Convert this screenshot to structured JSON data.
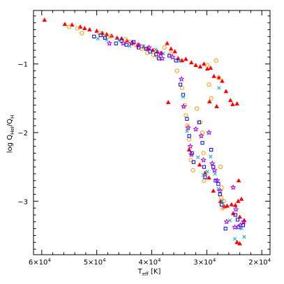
{
  "chart_data": {
    "type": "scatter",
    "title": "",
    "xlabel": "T_eff [K]",
    "ylabel": "log Q_HeI/Q_H",
    "xlabel_parts": {
      "main": "T",
      "sub": "eff",
      "tail": " [K]"
    },
    "ylabel_parts": {
      "head": "log Q",
      "sub1": "HeI",
      "mid": "/Q",
      "sub2": "H"
    },
    "xlim": [
      61500,
      18500
    ],
    "ylim": [
      -3.78,
      -0.22
    ],
    "x_ticks": [
      {
        "value": 60000,
        "label": "6×10",
        "exp": "4"
      },
      {
        "value": 50000,
        "label": "5×10",
        "exp": "4"
      },
      {
        "value": 40000,
        "label": "4×10",
        "exp": "4"
      },
      {
        "value": 30000,
        "label": "3×10",
        "exp": "4"
      },
      {
        "value": 20000,
        "label": "2×10",
        "exp": "4"
      }
    ],
    "y_ticks": [
      {
        "value": -1,
        "label": "−1"
      },
      {
        "value": -2,
        "label": "−2"
      },
      {
        "value": -3,
        "label": "−3"
      }
    ],
    "grid": false,
    "series": [
      {
        "marker": "triangle",
        "color": "#ff0000",
        "points": [
          [
            59500,
            -0.36
          ],
          [
            55800,
            -0.42
          ],
          [
            54500,
            -0.43
          ],
          [
            53000,
            -0.46
          ],
          [
            52200,
            -0.48
          ],
          [
            51300,
            -0.5
          ],
          [
            50000,
            -0.52
          ],
          [
            49000,
            -0.55
          ],
          [
            48200,
            -0.57
          ],
          [
            47300,
            -0.59
          ],
          [
            46300,
            -0.62
          ],
          [
            45500,
            -0.63
          ],
          [
            44500,
            -0.66
          ],
          [
            43500,
            -0.69
          ],
          [
            42500,
            -0.72
          ],
          [
            41500,
            -0.75
          ],
          [
            40700,
            -0.77
          ],
          [
            39800,
            -0.8
          ],
          [
            39000,
            -0.82
          ],
          [
            38200,
            -0.84
          ],
          [
            37200,
            -0.7
          ],
          [
            36500,
            -0.78
          ],
          [
            35800,
            -0.82
          ],
          [
            35200,
            -0.92
          ],
          [
            34500,
            -0.95
          ],
          [
            33800,
            -0.93
          ],
          [
            32800,
            -0.98
          ],
          [
            32000,
            -1.02
          ],
          [
            31200,
            -1.04
          ],
          [
            30500,
            -1.0
          ],
          [
            29900,
            -1.07
          ],
          [
            29300,
            -1.06
          ],
          [
            28700,
            -1.18
          ],
          [
            27800,
            -1.2
          ],
          [
            27200,
            -1.25
          ],
          [
            26500,
            -1.4
          ],
          [
            25700,
            -1.53
          ],
          [
            25300,
            -1.59
          ],
          [
            24500,
            -1.58
          ],
          [
            29500,
            -1.55
          ],
          [
            28200,
            -1.62
          ],
          [
            37000,
            -1.56
          ],
          [
            33200,
            -2.25
          ],
          [
            31300,
            -2.47
          ],
          [
            30300,
            -2.59
          ],
          [
            29600,
            -2.66
          ],
          [
            28800,
            -2.85
          ],
          [
            27500,
            -3.0
          ],
          [
            26300,
            -3.07
          ],
          [
            25500,
            -3.05
          ],
          [
            24800,
            -3.06
          ],
          [
            24300,
            -3.0
          ],
          [
            23700,
            -2.97
          ],
          [
            25200,
            -3.18
          ],
          [
            24000,
            -3.23
          ],
          [
            23200,
            -3.28
          ],
          [
            26800,
            -3.08
          ],
          [
            24500,
            -3.6
          ],
          [
            24000,
            -3.62
          ],
          [
            24200,
            -2.7
          ]
        ]
      },
      {
        "marker": "circle-open",
        "color": "#ff9900",
        "points": [
          [
            55000,
            -0.46
          ],
          [
            53500,
            -0.48
          ],
          [
            52700,
            -0.55
          ],
          [
            49500,
            -0.55
          ],
          [
            48600,
            -0.6
          ],
          [
            47600,
            -0.6
          ],
          [
            44800,
            -0.64
          ],
          [
            43900,
            -0.68
          ],
          [
            42800,
            -0.73
          ],
          [
            41800,
            -0.78
          ],
          [
            40800,
            -0.84
          ],
          [
            39700,
            -0.87
          ],
          [
            38900,
            -0.9
          ],
          [
            37700,
            -0.76
          ],
          [
            36600,
            -0.85
          ],
          [
            35400,
            -1.1
          ],
          [
            34500,
            -1.35
          ],
          [
            34000,
            -1.6
          ],
          [
            33500,
            -1.9
          ],
          [
            33200,
            -2.1
          ],
          [
            32900,
            -2.4
          ],
          [
            31800,
            -1.65
          ],
          [
            31200,
            -1.85
          ],
          [
            30800,
            -2.0
          ],
          [
            30600,
            -2.3
          ],
          [
            30500,
            -2.7
          ],
          [
            29900,
            -1.02
          ],
          [
            29600,
            -1.3
          ],
          [
            29200,
            -1.5
          ],
          [
            28300,
            -0.95
          ],
          [
            27800,
            -1.2
          ],
          [
            27500,
            -2.5
          ],
          [
            27300,
            -2.8
          ],
          [
            27100,
            -3.1
          ],
          [
            26900,
            -3.0
          ],
          [
            33800,
            -1.75
          ],
          [
            32500,
            -2.55
          ],
          [
            27400,
            -2.95
          ]
        ]
      },
      {
        "marker": "square-open",
        "color": "#0000ff",
        "points": [
          [
            50500,
            -0.6
          ],
          [
            49300,
            -0.58
          ],
          [
            48500,
            -0.62
          ],
          [
            46500,
            -0.7
          ],
          [
            45500,
            -0.66
          ],
          [
            44600,
            -0.72
          ],
          [
            43300,
            -0.68
          ],
          [
            42400,
            -0.76
          ],
          [
            41000,
            -0.78
          ],
          [
            40300,
            -0.82
          ],
          [
            39200,
            -0.86
          ],
          [
            38700,
            -0.92
          ],
          [
            36800,
            -0.88
          ],
          [
            35600,
            -0.95
          ],
          [
            34800,
            -1.3
          ],
          [
            34300,
            -1.45
          ],
          [
            33600,
            -1.8
          ],
          [
            33200,
            -2.05
          ],
          [
            32700,
            -2.3
          ],
          [
            32400,
            -2.43
          ],
          [
            31400,
            -1.85
          ],
          [
            30800,
            -2.15
          ],
          [
            30500,
            -2.5
          ],
          [
            30300,
            -2.65
          ],
          [
            29200,
            -2.25
          ],
          [
            28800,
            -2.5
          ],
          [
            28400,
            -2.7
          ],
          [
            27900,
            -2.75
          ],
          [
            27600,
            -2.9
          ],
          [
            27300,
            -3.05
          ],
          [
            24800,
            -3.2
          ],
          [
            24400,
            -3.27
          ],
          [
            23400,
            -3.35
          ],
          [
            26600,
            -3.4
          ],
          [
            24200,
            -3.38
          ]
        ]
      },
      {
        "marker": "cross",
        "color": "#00aacc",
        "points": [
          [
            49800,
            -0.63
          ],
          [
            48200,
            -0.65
          ],
          [
            46000,
            -0.66
          ],
          [
            44000,
            -0.74
          ],
          [
            41500,
            -0.74
          ],
          [
            39300,
            -0.79
          ],
          [
            37900,
            -0.85
          ],
          [
            35000,
            -0.96
          ],
          [
            34300,
            -1.48
          ],
          [
            33600,
            -1.98
          ],
          [
            31600,
            -2.36
          ],
          [
            30600,
            -2.62
          ],
          [
            29900,
            -2.57
          ],
          [
            29300,
            -2.35
          ],
          [
            28500,
            -2.6
          ],
          [
            27900,
            -2.82
          ],
          [
            27200,
            -3.0
          ],
          [
            25800,
            -3.28
          ],
          [
            24900,
            -3.55
          ],
          [
            23200,
            -3.52
          ],
          [
            23700,
            -3.4
          ],
          [
            27800,
            -1.35
          ]
        ]
      },
      {
        "marker": "star",
        "color": "#aa00dd",
        "points": [
          [
            47700,
            -0.7
          ],
          [
            45200,
            -0.7
          ],
          [
            43700,
            -0.7
          ],
          [
            42300,
            -0.73
          ],
          [
            40500,
            -0.76
          ],
          [
            38400,
            -0.85
          ],
          [
            36200,
            -0.9
          ],
          [
            34200,
            -1.62
          ],
          [
            33400,
            -1.93
          ],
          [
            33000,
            -2.2
          ],
          [
            32000,
            -1.95
          ],
          [
            31000,
            -2.05
          ],
          [
            30600,
            -2.4
          ],
          [
            29600,
            -2.0
          ],
          [
            28600,
            -2.55
          ],
          [
            28100,
            -2.7
          ],
          [
            27600,
            -2.85
          ],
          [
            25200,
            -2.8
          ],
          [
            24700,
            -3.12
          ],
          [
            23900,
            -3.35
          ],
          [
            26400,
            -3.3
          ],
          [
            24900,
            -3.38
          ],
          [
            23300,
            -3.3
          ],
          [
            34600,
            -1.22
          ],
          [
            32800,
            -2.32
          ],
          [
            29000,
            -2.45
          ],
          [
            38100,
            -0.92
          ]
        ]
      }
    ]
  }
}
